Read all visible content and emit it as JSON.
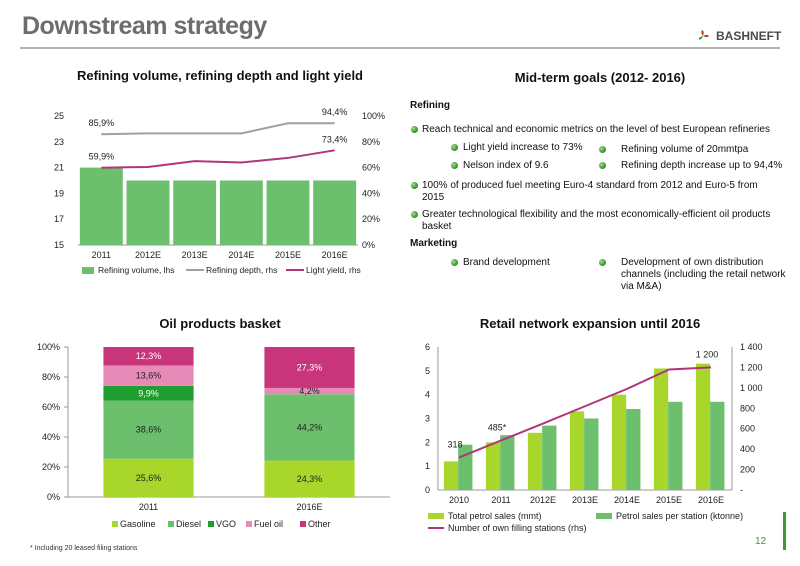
{
  "header": {
    "title": "Downstream strategy",
    "logo_text": "BASHNEFT",
    "brand_color": "#c0392b"
  },
  "colors": {
    "bar_green": "#6cbf6c",
    "gasoline": "#a8d62a",
    "diesel": "#6cbf6c",
    "vgo": "#1e9e2e",
    "fuel_oil": "#e68ab8",
    "other": "#c8357a",
    "line_grey": "#a0a0a0",
    "line_purple": "#b0357a"
  },
  "refining_chart_title": "Refining volume, refining depth and light yield",
  "goals": {
    "title": "Mid-term goals (2012- 2016)",
    "refining_heading": "Refining",
    "item1": "Reach technical and economic metrics on the level of best European refineries",
    "sub_a": "Light yield increase to 73%",
    "sub_b": "Refining volume of 20mmtpa",
    "sub_c": "Nelson index of 9.6",
    "sub_d": "Refining depth increase up to 94,4%",
    "item2": "100% of produced fuel meeting Euro-4 standard from 2012 and Euro-5 from 2015",
    "item3": "Greater technological flexibility and the most economically-efficient oil products basket",
    "marketing_heading": "Marketing",
    "m1": "Brand development",
    "m2": "Development of own distribution channels (including the retail network via M&A)"
  },
  "basket_chart_title": "Oil products basket",
  "retail_chart_title": "Retail network expansion until 2016",
  "footnote": "* Including 20 leased filing stations",
  "page_number": "12",
  "chart_data": [
    {
      "type": "bar",
      "title": "Refining volume, refining depth and light yield",
      "categories": [
        "2011",
        "2012E",
        "2013E",
        "2014E",
        "2015E",
        "2016E"
      ],
      "series": [
        {
          "name": "Refining volume, lhs",
          "type": "bar",
          "axis": "left",
          "values": [
            21.0,
            20.0,
            20.0,
            20.0,
            20.0,
            20.0
          ]
        },
        {
          "name": "Refining depth, rhs",
          "type": "line",
          "axis": "right",
          "values": [
            85.9,
            86.5,
            86.5,
            86.5,
            94.4,
            94.4
          ]
        },
        {
          "name": "Light yield, rhs",
          "type": "line",
          "axis": "right",
          "values": [
            59.9,
            60.5,
            65.0,
            64.0,
            67.5,
            73.4
          ]
        }
      ],
      "left_ticks": [
        "15",
        "17",
        "19",
        "21",
        "23",
        "25"
      ],
      "right_ticks": [
        "0%",
        "20%",
        "40%",
        "60%",
        "80%",
        "100%"
      ],
      "ylim_left": [
        15,
        25
      ],
      "ylim_right": [
        0,
        100
      ],
      "data_labels": [
        {
          "series": 1,
          "index": 0,
          "text": "85,9%"
        },
        {
          "series": 1,
          "index": 5,
          "text": "94,4%"
        },
        {
          "series": 2,
          "index": 0,
          "text": "59,9%"
        },
        {
          "series": 2,
          "index": 5,
          "text": "73,4%"
        }
      ],
      "legend_position": "bottom"
    },
    {
      "type": "bar",
      "stacked": true,
      "title": "Oil products basket",
      "categories": [
        "2011",
        "2016E"
      ],
      "series": [
        {
          "name": "Gasoline",
          "values": [
            25.6,
            24.3
          ],
          "labels": [
            "25,6%",
            "24,3%"
          ]
        },
        {
          "name": "Diesel",
          "values": [
            38.6,
            44.2
          ],
          "labels": [
            "38,6%",
            "44,2%"
          ]
        },
        {
          "name": "VGO",
          "values": [
            9.9,
            0
          ],
          "labels": [
            "9,9%",
            ""
          ]
        },
        {
          "name": "Fuel oil",
          "values": [
            13.6,
            4.2
          ],
          "labels": [
            "13,6%",
            "4,2%"
          ]
        },
        {
          "name": "Other",
          "values": [
            12.3,
            27.3
          ],
          "labels": [
            "12,3%",
            "27,3%"
          ]
        }
      ],
      "y_ticks": [
        "0%",
        "20%",
        "40%",
        "60%",
        "80%",
        "100%"
      ],
      "ylim": [
        0,
        100
      ],
      "legend_position": "bottom"
    },
    {
      "type": "bar",
      "title": "Retail network expansion until 2016",
      "categories": [
        "2010",
        "2011",
        "2012E",
        "2013E",
        "2014E",
        "2015E",
        "2016E"
      ],
      "series": [
        {
          "name": "Total petrol sales (mmt)",
          "type": "bar",
          "axis": "left",
          "values": [
            1.2,
            2.0,
            2.4,
            3.3,
            4.0,
            5.1,
            5.3
          ]
        },
        {
          "name": "Petrol sales per station (ktonne)",
          "type": "bar",
          "axis": "left",
          "values": [
            1.9,
            2.3,
            2.7,
            3.0,
            3.4,
            3.7,
            3.7
          ]
        },
        {
          "name": "Number of own filling stations (rhs)",
          "type": "line",
          "axis": "right",
          "values": [
            318,
            485,
            650,
            820,
            990,
            1180,
            1200
          ]
        }
      ],
      "left_ticks": [
        "0",
        "1",
        "2",
        "3",
        "4",
        "5",
        "6"
      ],
      "right_ticks": [
        "-",
        "200",
        "400",
        "600",
        "800",
        "1 000",
        "1 200",
        "1 400"
      ],
      "ylim_left": [
        0,
        6
      ],
      "ylim_right": [
        0,
        1400
      ],
      "data_labels": [
        {
          "series": 2,
          "index": 0,
          "text": "318"
        },
        {
          "series": 2,
          "index": 1,
          "text": "485*"
        },
        {
          "series": 2,
          "index": 6,
          "text": "1 200"
        }
      ],
      "legend_position": "bottom"
    }
  ]
}
